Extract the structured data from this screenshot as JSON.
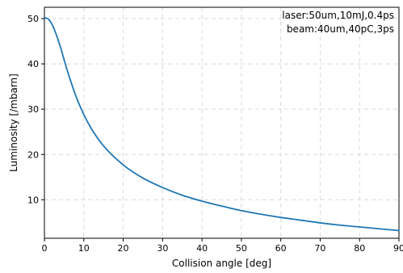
{
  "chart_data": {
    "type": "line",
    "title": "",
    "xlabel": "Collision angle [deg]",
    "ylabel": "Luminosity [/mbarn]",
    "xlim": [
      0,
      90
    ],
    "ylim": [
      1.5,
      52.5
    ],
    "xticks": [
      0,
      10,
      20,
      30,
      40,
      50,
      60,
      70,
      80,
      90
    ],
    "yticks": [
      10,
      20,
      30,
      40,
      50
    ],
    "grid": true,
    "grid_style": "dashed",
    "annotations": [
      "laser:50um,10mJ,0.4ps",
      "beam:40um,40pC,3ps"
    ],
    "annotation_placement": "top-right",
    "line_color": "#1f77b4",
    "series": [
      {
        "x": [
          0,
          1,
          2,
          3,
          4,
          5,
          6,
          8,
          10,
          12,
          15,
          20,
          25,
          30,
          35,
          40,
          45,
          50,
          55,
          60,
          65,
          70,
          75,
          80,
          85,
          90
        ],
        "values": [
          50.2,
          49.9,
          48.6,
          46.5,
          43.9,
          40.9,
          38.0,
          32.9,
          28.8,
          25.6,
          21.9,
          17.7,
          14.8,
          12.7,
          11.0,
          9.7,
          8.6,
          7.6,
          6.8,
          6.1,
          5.5,
          4.9,
          4.4,
          4.0,
          3.6,
          3.2
        ]
      }
    ]
  }
}
